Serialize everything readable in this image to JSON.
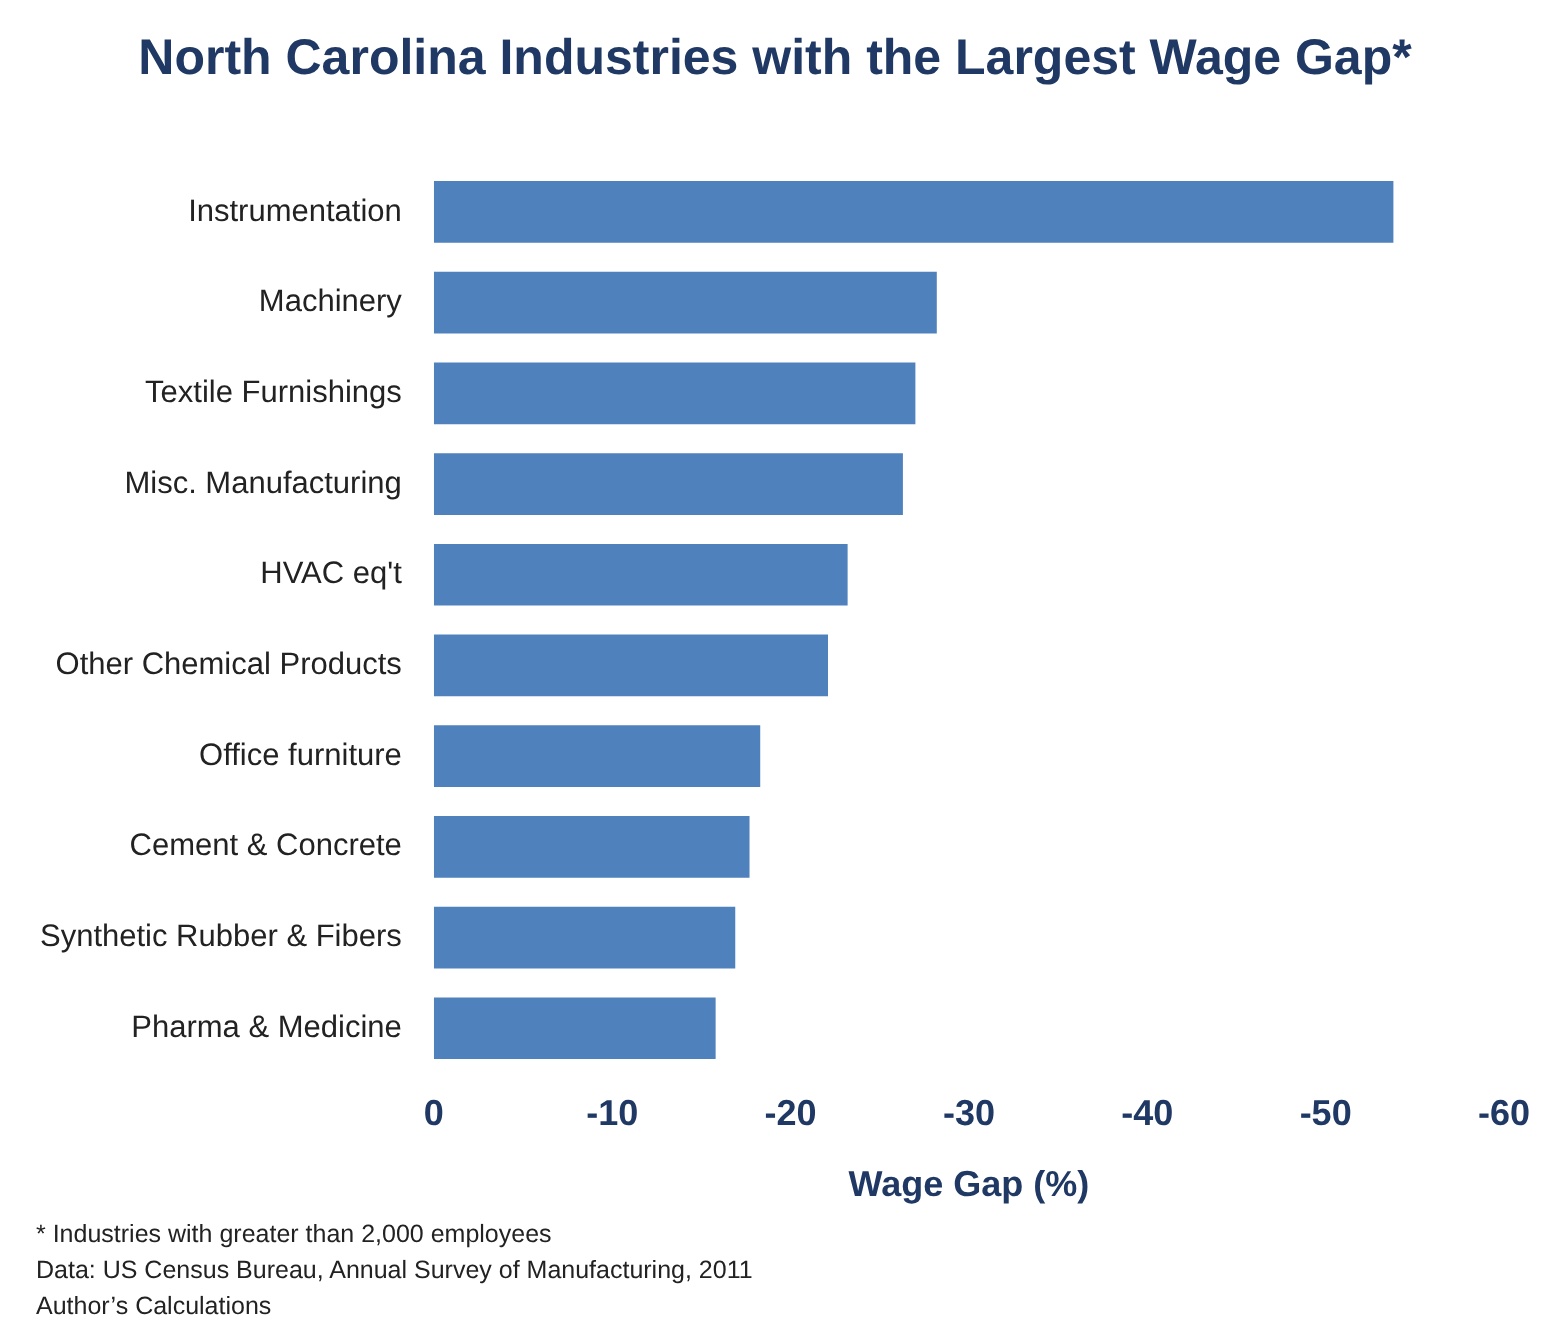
{
  "chart_data": {
    "type": "bar",
    "orientation": "horizontal",
    "title": "North Carolina Industries with the Largest Wage Gap*",
    "xlabel": "Wage Gap (%)",
    "categories": [
      "Instrumentation",
      "Machinery",
      "Textile Furnishings",
      "Misc. Manufacturing",
      "HVAC eq't",
      "Other Chemical Products",
      "Office furniture",
      "Cement & Concrete",
      "Synthetic Rubber & Fibers",
      "Pharma & Medicine"
    ],
    "values": [
      -53.8,
      -28.2,
      -27.0,
      -26.3,
      -23.2,
      -22.1,
      -18.3,
      -17.7,
      -16.9,
      -15.8
    ],
    "color": "#4f81bd",
    "xlim": [
      0,
      -60
    ],
    "xticks": [
      0,
      -10,
      -20,
      -30,
      -40,
      -50,
      -60
    ],
    "grid": false,
    "legend": false,
    "annotations": [
      "* Industries with greater than 2,000 employees",
      "Data: US Census Bureau, Annual Survey of Manufacturing, 2011",
      "Author’s Calculations"
    ]
  }
}
